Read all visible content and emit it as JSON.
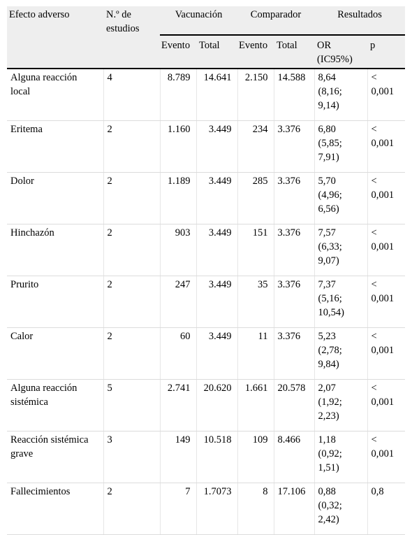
{
  "header": {
    "col_effect": "Efecto adverso",
    "col_studies_line1": "N.º de",
    "col_studies_line2": "estudios",
    "group_vaccination": "Vacunación",
    "group_comparator": "Comparador",
    "group_results": "Resultados",
    "sub_event_1": "Evento",
    "sub_total_1": "Total",
    "sub_event_2": "Evento",
    "sub_total_2": "Total",
    "sub_or_line1": "OR",
    "sub_or_line2": "(IC95%)",
    "sub_p": "p"
  },
  "rows": [
    {
      "effect": [
        "Alguna reacción",
        "local"
      ],
      "studies": "4",
      "vac_event": "8.789",
      "vac_total": "14.641",
      "comp_event": "2.150",
      "comp_total": "14.588",
      "or": [
        "8,64",
        "(8,16;",
        "9,14)"
      ],
      "p": [
        "<",
        "0,001"
      ]
    },
    {
      "effect": [
        "Eritema",
        ""
      ],
      "studies": "2",
      "vac_event": "1.160",
      "vac_total": "3.449",
      "comp_event": "234",
      "comp_total": "3.376",
      "or": [
        "6,80",
        "(5,85;",
        "7,91)"
      ],
      "p": [
        "<",
        "0,001"
      ]
    },
    {
      "effect": [
        "Dolor",
        ""
      ],
      "studies": "2",
      "vac_event": "1.189",
      "vac_total": "3.449",
      "comp_event": "285",
      "comp_total": "3.376",
      "or": [
        "5,70",
        "(4,96;",
        "6,56)"
      ],
      "p": [
        "<",
        "0,001"
      ]
    },
    {
      "effect": [
        "Hinchazón",
        ""
      ],
      "studies": "2",
      "vac_event": "903",
      "vac_total": "3.449",
      "comp_event": "151",
      "comp_total": "3.376",
      "or": [
        "7,57",
        "(6,33;",
        "9,07)"
      ],
      "p": [
        "<",
        "0,001"
      ]
    },
    {
      "effect": [
        "Prurito",
        ""
      ],
      "studies": "2",
      "vac_event": "247",
      "vac_total": "3.449",
      "comp_event": "35",
      "comp_total": "3.376",
      "or": [
        "7,37",
        "(5,16;",
        "10,54)"
      ],
      "p": [
        "<",
        "0,001"
      ]
    },
    {
      "effect": [
        "Calor",
        ""
      ],
      "studies": "2",
      "vac_event": "60",
      "vac_total": "3.449",
      "comp_event": "11",
      "comp_total": "3.376",
      "or": [
        "5,23",
        "(2,78;",
        "9,84)"
      ],
      "p": [
        "<",
        "0,001"
      ]
    },
    {
      "effect": [
        "Alguna reacción",
        "sistémica"
      ],
      "studies": "5",
      "vac_event": "2.741",
      "vac_total": "20.620",
      "comp_event": "1.661",
      "comp_total": "20.578",
      "or": [
        "2,07",
        "(1,92;",
        "2,23)"
      ],
      "p": [
        "<",
        "0,001"
      ]
    },
    {
      "effect": [
        "Reacción sistémica",
        "grave"
      ],
      "studies": "3",
      "vac_event": "149",
      "vac_total": "10.518",
      "comp_event": "109",
      "comp_total": "8.466",
      "or": [
        "1,18",
        "(0,92;",
        "1,51)"
      ],
      "p": [
        "<",
        "0,001"
      ]
    },
    {
      "effect": [
        "Fallecimientos",
        ""
      ],
      "studies": "2",
      "vac_event": "7",
      "vac_total": "1.7073",
      "comp_event": "8",
      "comp_total": "17.106",
      "or": [
        "0,88",
        "(0,32;",
        "2,42)"
      ],
      "p": [
        "0,8",
        ""
      ]
    }
  ]
}
